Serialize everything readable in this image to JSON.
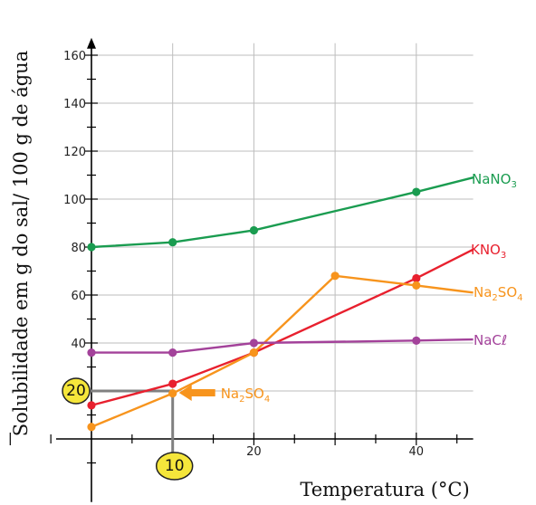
{
  "chart_data": {
    "type": "line",
    "xlabel": "Temperatura (°C)",
    "ylabel": "Solubilidade em g do sal/ 100 g de água",
    "xlim": [
      0,
      47
    ],
    "ylim": [
      -15,
      165
    ],
    "x_ticks": [
      20,
      40
    ],
    "y_ticks": [
      20,
      40,
      60,
      80,
      100,
      120,
      140,
      160
    ],
    "grid": true,
    "series": [
      {
        "name": "NaNO3",
        "color": "#1a9c50",
        "x": [
          0,
          10,
          20,
          40,
          47
        ],
        "y": [
          80,
          82,
          87,
          103,
          109
        ],
        "markers": [
          true,
          true,
          true,
          true,
          false
        ]
      },
      {
        "name": "KNO3",
        "color": "#e8202e",
        "x": [
          0,
          10,
          20,
          40,
          47
        ],
        "y": [
          14,
          23,
          36,
          67,
          79
        ],
        "markers": [
          true,
          true,
          true,
          true,
          false
        ]
      },
      {
        "name": "Na2SO4",
        "color": "#f7941d",
        "x": [
          0,
          10,
          20,
          30,
          40,
          47
        ],
        "y": [
          5,
          19,
          36,
          68,
          64,
          61
        ],
        "markers": [
          true,
          true,
          true,
          true,
          true,
          false
        ]
      },
      {
        "name": "NaCl",
        "color": "#a3429a",
        "x": [
          0,
          10,
          20,
          40,
          47
        ],
        "y": [
          36,
          36,
          40,
          41,
          41.5
        ],
        "markers": [
          true,
          true,
          true,
          true,
          false
        ]
      }
    ],
    "series_labels": {
      "NaNO3": {
        "base": "NaNO",
        "sub": "3"
      },
      "KNO3": {
        "base": "KNO",
        "sub": "3"
      },
      "Na2SO4": {
        "a": "Na",
        "s1": "2",
        "b": "SO",
        "s2": "4"
      },
      "NaCl": {
        "base": "NaC",
        "tail": "ℓ"
      }
    },
    "annotations": {
      "x_marker": {
        "value": 10,
        "label": "10"
      },
      "y_marker": {
        "value": 20,
        "label": "20"
      },
      "arrow_label": {
        "a": "Na",
        "s1": "2",
        "b": "SO",
        "s2": "4"
      },
      "highlight_color": "#f5e63b"
    }
  }
}
